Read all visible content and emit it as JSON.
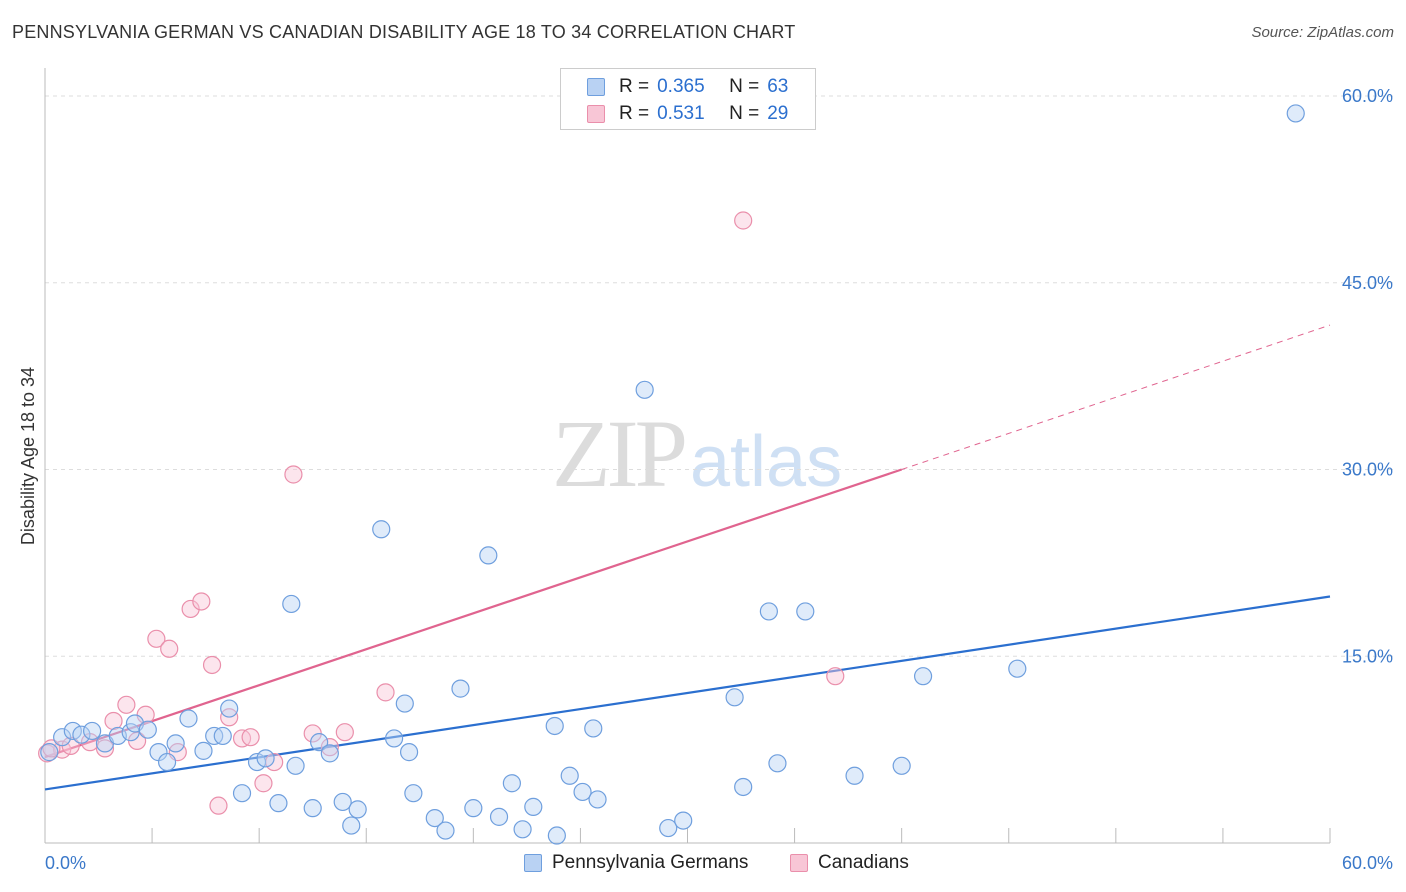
{
  "chart_data": {
    "type": "scatter",
    "title": "PENNSYLVANIA GERMAN VS CANADIAN DISABILITY AGE 18 TO 34 CORRELATION CHART",
    "source": "Source: ZipAtlas.com",
    "xlabel": "",
    "ylabel": "Disability Age 18 to 34",
    "xlim": [
      0,
      60
    ],
    "ylim": [
      0,
      60
    ],
    "x_tick_labels": [
      "0.0%",
      "60.0%"
    ],
    "y_ticks": [
      15,
      30,
      45,
      60
    ],
    "y_tick_labels": [
      "15.0%",
      "30.0%",
      "45.0%",
      "60.0%"
    ],
    "grid": true,
    "legend_placement": "top-center",
    "watermark": {
      "part1": "ZIP",
      "part2": "atlas"
    },
    "series": [
      {
        "name": "Pennsylvania Germans",
        "r_label": "R =",
        "r_value": "0.365",
        "n_label": "N =",
        "n_value": "63",
        "color": "#6f9fde",
        "fill": "#b9d2f3",
        "line_color": "#2b6fcf",
        "trend": {
          "x": [
            0,
            60
          ],
          "y": [
            4.3,
            19.8
          ]
        },
        "points": [
          [
            0.2,
            7.3
          ],
          [
            0.8,
            8.5
          ],
          [
            1.3,
            9.0
          ],
          [
            1.7,
            8.7
          ],
          [
            2.2,
            9.0
          ],
          [
            2.8,
            8.0
          ],
          [
            3.4,
            8.6
          ],
          [
            4.0,
            8.9
          ],
          [
            4.2,
            9.6
          ],
          [
            4.8,
            9.1
          ],
          [
            5.3,
            7.3
          ],
          [
            5.7,
            6.5
          ],
          [
            6.1,
            8.0
          ],
          [
            6.7,
            10.0
          ],
          [
            7.4,
            7.4
          ],
          [
            7.9,
            8.6
          ],
          [
            8.3,
            8.6
          ],
          [
            8.6,
            10.8
          ],
          [
            9.2,
            4.0
          ],
          [
            9.9,
            6.5
          ],
          [
            10.3,
            6.8
          ],
          [
            10.9,
            3.2
          ],
          [
            11.5,
            19.2
          ],
          [
            11.7,
            6.2
          ],
          [
            12.5,
            2.8
          ],
          [
            12.8,
            8.1
          ],
          [
            13.3,
            7.2
          ],
          [
            13.9,
            3.3
          ],
          [
            14.3,
            1.4
          ],
          [
            14.6,
            2.7
          ],
          [
            15.7,
            25.2
          ],
          [
            16.3,
            8.4
          ],
          [
            16.8,
            11.2
          ],
          [
            17.0,
            7.3
          ],
          [
            17.2,
            4.0
          ],
          [
            18.2,
            2.0
          ],
          [
            18.7,
            1.0
          ],
          [
            19.4,
            12.4
          ],
          [
            20.0,
            2.8
          ],
          [
            20.7,
            23.1
          ],
          [
            21.2,
            2.1
          ],
          [
            21.8,
            4.8
          ],
          [
            22.3,
            1.1
          ],
          [
            22.8,
            2.9
          ],
          [
            23.8,
            9.4
          ],
          [
            23.9,
            0.6
          ],
          [
            24.5,
            5.4
          ],
          [
            25.1,
            4.1
          ],
          [
            25.6,
            9.2
          ],
          [
            25.8,
            3.5
          ],
          [
            28.0,
            36.4
          ],
          [
            29.1,
            1.2
          ],
          [
            29.8,
            1.8
          ],
          [
            32.2,
            11.7
          ],
          [
            32.6,
            4.5
          ],
          [
            33.8,
            18.6
          ],
          [
            34.2,
            6.4
          ],
          [
            35.5,
            18.6
          ],
          [
            37.8,
            5.4
          ],
          [
            40.0,
            6.2
          ],
          [
            41.0,
            13.4
          ],
          [
            45.4,
            14.0
          ],
          [
            58.4,
            58.6
          ]
        ]
      },
      {
        "name": "Canadians",
        "r_label": "R =",
        "r_value": "0.531",
        "n_label": "N =",
        "n_value": "29",
        "color": "#ea8fab",
        "fill": "#f8c6d6",
        "line_color": "#e0648f",
        "trend": {
          "x": [
            0,
            40
          ],
          "y": [
            6.9,
            30.0
          ]
        },
        "trend_dashed": {
          "x": [
            40,
            60
          ],
          "y": [
            30.0,
            41.6
          ]
        },
        "points": [
          [
            0.1,
            7.2
          ],
          [
            0.8,
            7.5
          ],
          [
            1.2,
            7.8
          ],
          [
            2.1,
            8.1
          ],
          [
            2.8,
            7.6
          ],
          [
            3.2,
            9.8
          ],
          [
            3.8,
            11.1
          ],
          [
            4.3,
            8.2
          ],
          [
            4.7,
            10.3
          ],
          [
            5.2,
            16.4
          ],
          [
            5.8,
            15.6
          ],
          [
            6.2,
            7.3
          ],
          [
            6.8,
            18.8
          ],
          [
            7.3,
            19.4
          ],
          [
            7.8,
            14.3
          ],
          [
            8.1,
            3.0
          ],
          [
            8.6,
            10.1
          ],
          [
            9.2,
            8.4
          ],
          [
            9.6,
            8.5
          ],
          [
            10.2,
            4.8
          ],
          [
            10.7,
            6.5
          ],
          [
            11.6,
            29.6
          ],
          [
            12.5,
            8.8
          ],
          [
            13.3,
            7.7
          ],
          [
            14.0,
            8.9
          ],
          [
            15.9,
            12.1
          ],
          [
            32.6,
            50.0
          ],
          [
            36.9,
            13.4
          ],
          [
            0.3,
            7.6
          ]
        ]
      }
    ]
  }
}
